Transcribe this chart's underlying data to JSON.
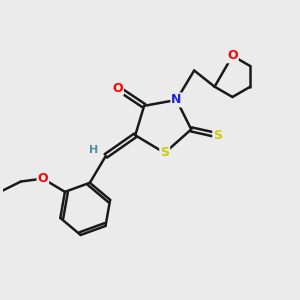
{
  "background_color": "#ebebeb",
  "bond_color": "#1a1a1a",
  "atom_colors": {
    "O": "#ff0000",
    "N": "#2222dd",
    "S": "#cccc00",
    "H": "#4a8fa8",
    "C": "#1a1a1a"
  },
  "title": "",
  "figsize": [
    3.0,
    3.0
  ],
  "dpi": 100
}
